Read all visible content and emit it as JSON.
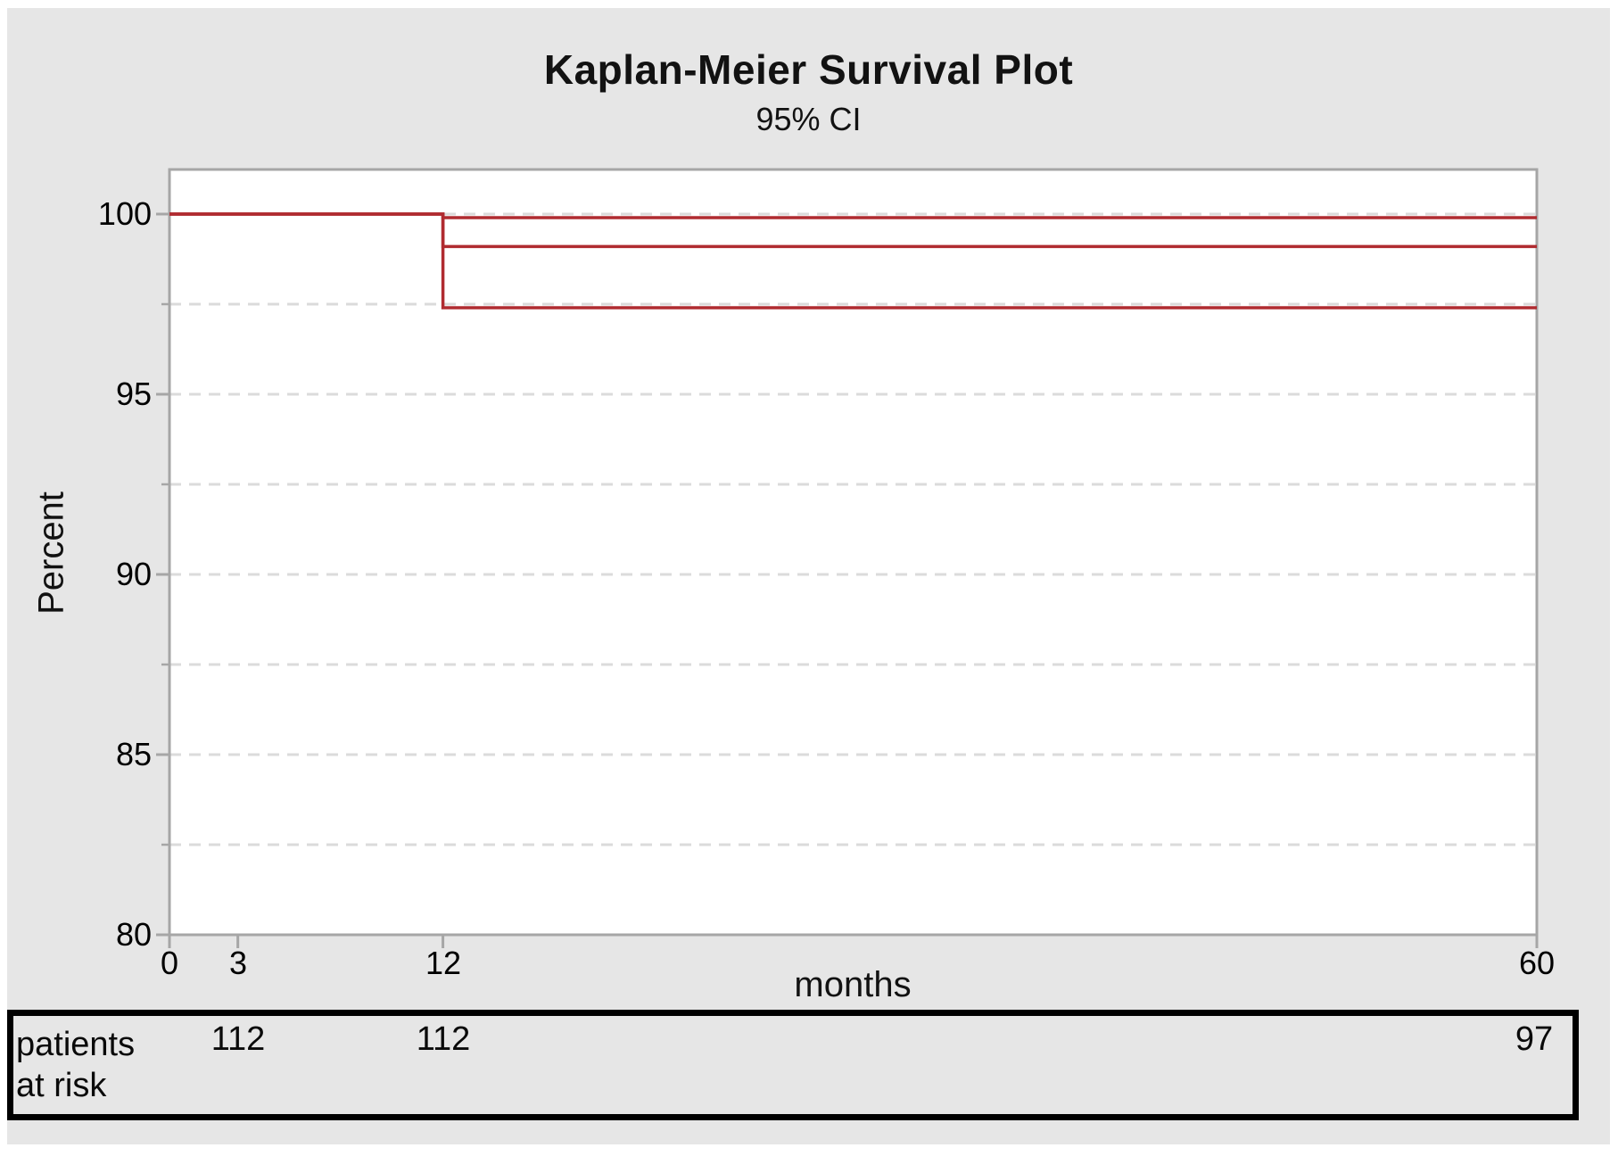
{
  "chart_data": {
    "type": "line",
    "subtype": "kaplan_meier_step_with_ci",
    "title": "Kaplan-Meier Survival Plot",
    "subtitle": "95% CI",
    "xlabel": "months",
    "ylabel": "Percent",
    "xlim": [
      0,
      60
    ],
    "ylim": [
      80,
      101.2
    ],
    "xticks": [
      0,
      3,
      12,
      60
    ],
    "yticks_major": [
      100,
      95,
      90,
      85,
      80
    ],
    "yticks_minor": [
      97.5,
      92.5,
      87.5,
      82.5
    ],
    "grid_percent": [
      100,
      97.5,
      95,
      92.5,
      90,
      87.5,
      85,
      82.5
    ],
    "grid_style": "dashed",
    "legend": "none",
    "series": [
      {
        "name": "survival_estimate",
        "style": "solid",
        "points": [
          [
            0,
            100
          ],
          [
            12,
            100
          ],
          [
            12,
            99.1
          ],
          [
            60,
            99.1
          ]
        ]
      },
      {
        "name": "upper_95_ci",
        "style": "solid",
        "points": [
          [
            0,
            100
          ],
          [
            12,
            100
          ],
          [
            12,
            99.9
          ],
          [
            60,
            99.9
          ]
        ]
      },
      {
        "name": "lower_95_ci",
        "style": "solid",
        "points": [
          [
            0,
            100
          ],
          [
            12,
            100
          ],
          [
            12,
            97.4
          ],
          [
            60,
            97.4
          ]
        ]
      }
    ],
    "at_risk": {
      "label": "patients at risk",
      "times": [
        3,
        12,
        60
      ],
      "counts": [
        112,
        112,
        97
      ]
    }
  },
  "colors": {
    "graph_background": "#e6e6e6",
    "plot_fill": "#ffffff",
    "plot_border": "#a6a6a6",
    "gridline": "#dbdbdb",
    "curve": "#b02b30",
    "risk_table_border": "#000000",
    "text": "#121212"
  }
}
